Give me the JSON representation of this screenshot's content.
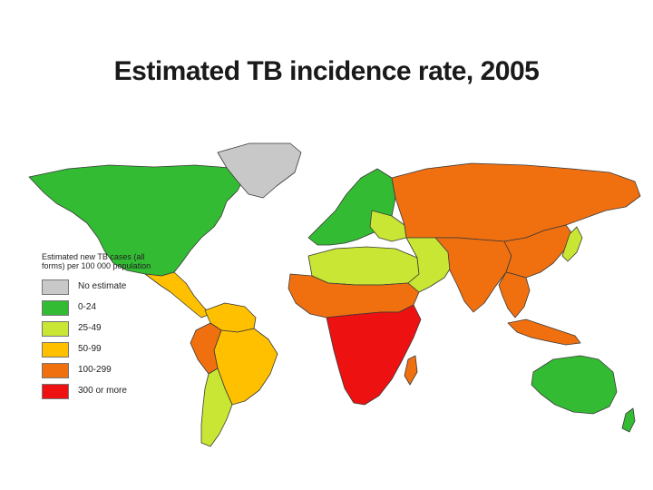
{
  "title": "Estimated TB incidence rate, 2005",
  "legend": {
    "heading": "Estimated new TB cases (all forms) per 100 000 population",
    "items": [
      {
        "label": "No estimate",
        "color": "#c8c8c8"
      },
      {
        "label": "0-24",
        "color": "#33bb33"
      },
      {
        "label": "25-49",
        "color": "#c8e633"
      },
      {
        "label": "50-99",
        "color": "#ffc000"
      },
      {
        "label": "100-299",
        "color": "#f07010"
      },
      {
        "label": "300 or more",
        "color": "#ee1111"
      }
    ]
  },
  "colors": {
    "no_estimate": "#c8c8c8",
    "rate_0_24": "#33bb33",
    "rate_25_49": "#c8e633",
    "rate_50_99": "#ffc000",
    "rate_100_299": "#f07010",
    "rate_300_plus": "#ee1111",
    "border": "#3a3a3a"
  },
  "regions": [
    {
      "name": "North America",
      "category": "0-24"
    },
    {
      "name": "Greenland",
      "category": "No estimate"
    },
    {
      "name": "Central America",
      "category": "50-99"
    },
    {
      "name": "Northern South America",
      "category": "50-99"
    },
    {
      "name": "Peru",
      "category": "100-299"
    },
    {
      "name": "Brazil",
      "category": "50-99"
    },
    {
      "name": "Southern Cone",
      "category": "25-49"
    },
    {
      "name": "Western Europe",
      "category": "0-24"
    },
    {
      "name": "Eastern Europe",
      "category": "25-49"
    },
    {
      "name": "Russia",
      "category": "100-299"
    },
    {
      "name": "North Africa",
      "category": "25-49"
    },
    {
      "name": "Sahel",
      "category": "100-299"
    },
    {
      "name": "Central and Southern Africa",
      "category": "300 or more"
    },
    {
      "name": "Middle East",
      "category": "25-49"
    },
    {
      "name": "Central and South Asia",
      "category": "100-299"
    },
    {
      "name": "East Asia",
      "category": "100-299"
    },
    {
      "name": "Southeast Asia",
      "category": "100-299"
    },
    {
      "name": "Japan",
      "category": "25-49"
    },
    {
      "name": "Australia",
      "category": "0-24"
    },
    {
      "name": "New Zealand",
      "category": "0-24"
    }
  ]
}
